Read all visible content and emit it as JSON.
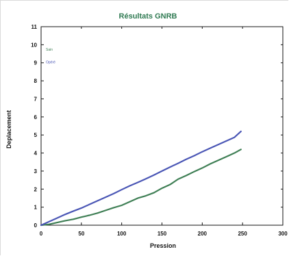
{
  "chart_data": {
    "type": "line",
    "title": "Résultats GNRB",
    "xlabel": "Pression",
    "ylabel": "Deplacement",
    "xlim": [
      0,
      300
    ],
    "ylim": [
      0,
      11
    ],
    "xticks": [
      0,
      50,
      100,
      150,
      200,
      250,
      300
    ],
    "yticks": [
      0,
      1,
      2,
      3,
      4,
      5,
      6,
      7,
      8,
      9,
      10,
      11
    ],
    "grid": false,
    "legend_position": "top-left",
    "series": [
      {
        "name": "Sain",
        "color": "#3f7f55",
        "x": [
          0,
          10,
          20,
          30,
          40,
          50,
          60,
          70,
          80,
          90,
          100,
          110,
          120,
          130,
          140,
          150,
          160,
          170,
          180,
          190,
          200,
          210,
          220,
          230,
          240,
          248
        ],
        "y": [
          0,
          0.05,
          0.15,
          0.25,
          0.33,
          0.45,
          0.55,
          0.67,
          0.82,
          0.97,
          1.1,
          1.3,
          1.5,
          1.63,
          1.8,
          2.05,
          2.25,
          2.55,
          2.75,
          2.97,
          3.17,
          3.4,
          3.6,
          3.8,
          4.0,
          4.2
        ]
      },
      {
        "name": "Opéré",
        "color": "#4a56b5",
        "x": [
          0,
          10,
          20,
          30,
          40,
          50,
          60,
          70,
          80,
          90,
          100,
          110,
          120,
          130,
          140,
          150,
          160,
          170,
          180,
          190,
          200,
          210,
          220,
          230,
          240,
          248
        ],
        "y": [
          0,
          0.2,
          0.4,
          0.6,
          0.78,
          0.95,
          1.15,
          1.35,
          1.55,
          1.75,
          1.97,
          2.18,
          2.37,
          2.57,
          2.78,
          3.0,
          3.22,
          3.43,
          3.65,
          3.85,
          4.07,
          4.27,
          4.47,
          4.67,
          4.87,
          5.2
        ]
      }
    ]
  }
}
